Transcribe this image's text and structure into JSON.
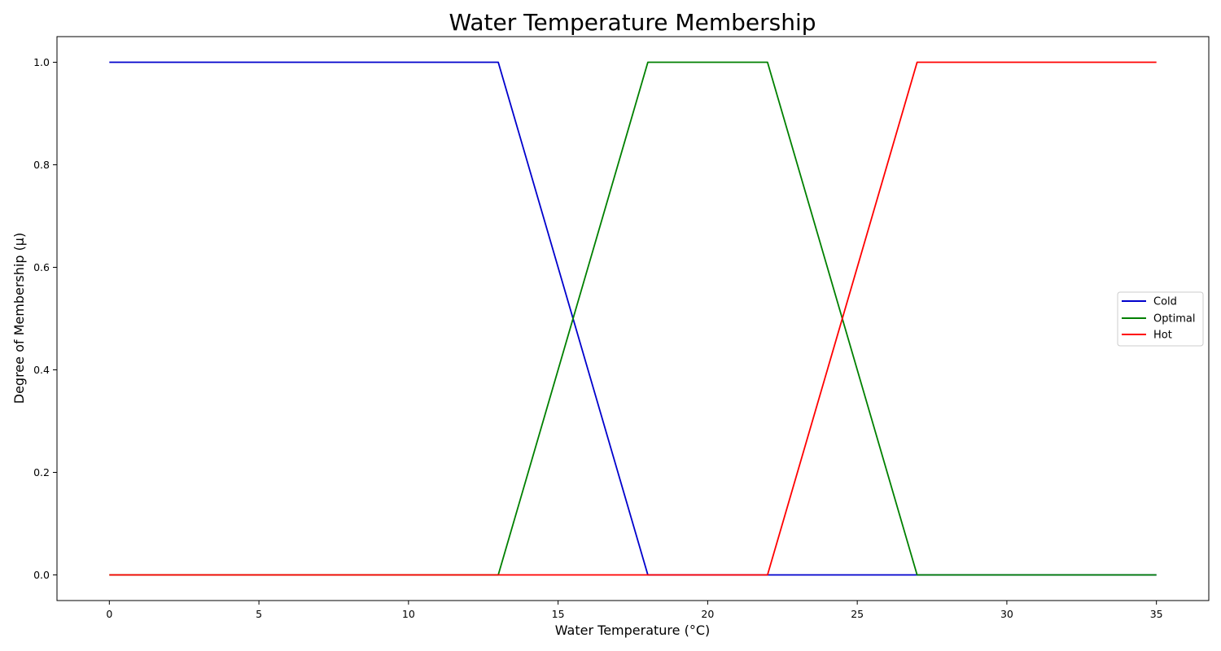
{
  "chart_data": {
    "type": "line",
    "title": "Water Temperature Membership",
    "xlabel": "Water Temperature (°C)",
    "ylabel": "Degree of Membership (μ)",
    "xlim": [
      -1.75,
      36.75
    ],
    "ylim": [
      -0.05,
      1.05
    ],
    "xticks": [
      0,
      5,
      10,
      15,
      20,
      25,
      30,
      35
    ],
    "yticks": [
      0.0,
      0.2,
      0.4,
      0.6,
      0.8,
      1.0
    ],
    "grid": false,
    "legend_position": "center-right",
    "series": [
      {
        "name": "Cold",
        "color": "#0000cc",
        "x": [
          0,
          13,
          18,
          35
        ],
        "y": [
          1.0,
          1.0,
          0.0,
          0.0
        ]
      },
      {
        "name": "Optimal",
        "color": "#008000",
        "x": [
          0,
          13,
          18,
          22,
          27,
          35
        ],
        "y": [
          0.0,
          0.0,
          1.0,
          1.0,
          0.0,
          0.0
        ]
      },
      {
        "name": "Hot",
        "color": "#ff0000",
        "x": [
          0,
          22,
          27,
          35
        ],
        "y": [
          0.0,
          0.0,
          1.0,
          1.0
        ]
      }
    ]
  }
}
